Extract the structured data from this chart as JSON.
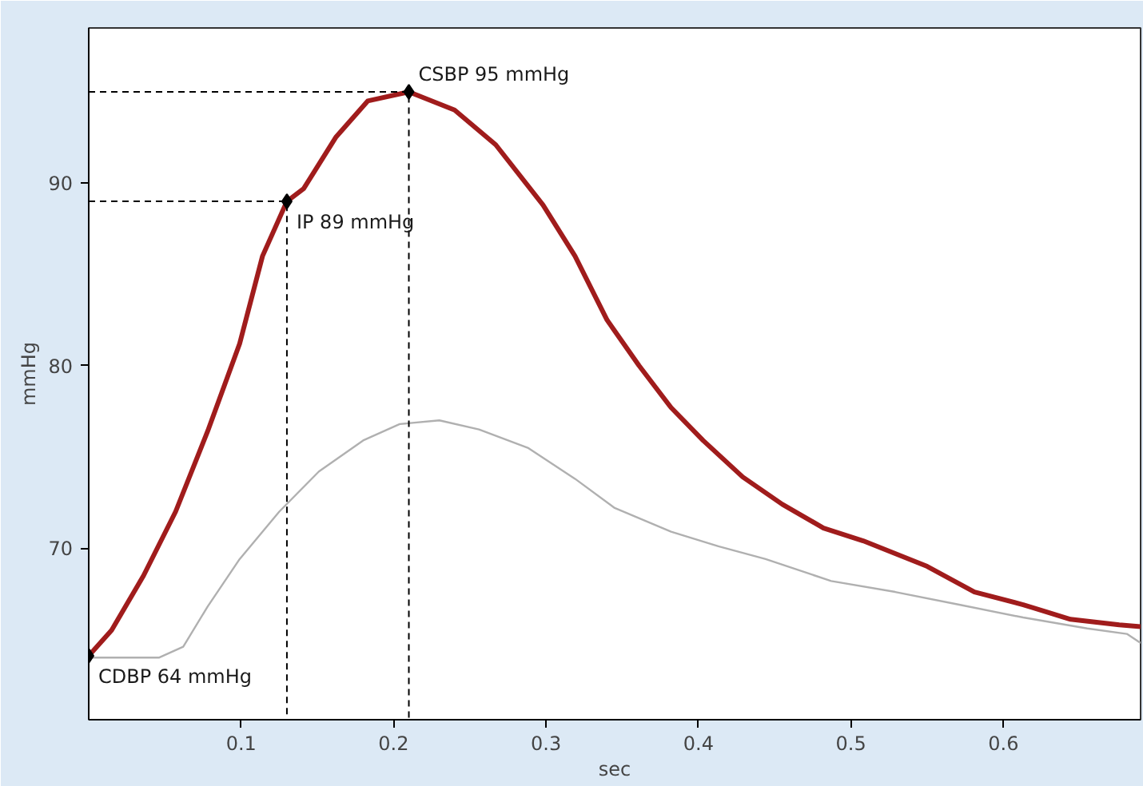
{
  "chart_data": {
    "type": "line",
    "xlabel": "sec",
    "ylabel": "mmHg",
    "xlim": [
      0,
      0.69
    ],
    "ylim": [
      60.6,
      98.5
    ],
    "xticks": [
      0.1,
      0.2,
      0.3,
      0.4,
      0.5,
      0.6
    ],
    "yticks": [
      70,
      80,
      90
    ],
    "grid": false,
    "marker": "none",
    "line_style": "solid",
    "series": [
      {
        "color": "#a01c1c",
        "x": [
          0,
          0.015,
          0.036,
          0.057,
          0.078,
          0.099,
          0.114,
          0.13,
          0.141,
          0.162,
          0.183,
          0.21,
          0.24,
          0.267,
          0.298,
          0.319,
          0.34,
          0.361,
          0.382,
          0.403,
          0.429,
          0.455,
          0.482,
          0.508,
          0.55,
          0.581,
          0.613,
          0.644,
          0.676,
          0.69
        ],
        "values": [
          64.1,
          65.5,
          68.5,
          72,
          76.4,
          81.2,
          86,
          89,
          89.7,
          92.5,
          94.5,
          95,
          94,
          92.1,
          88.8,
          86,
          82.5,
          80,
          77.7,
          75.9,
          73.9,
          72.4,
          71.1,
          70.4,
          69,
          67.6,
          66.9,
          66.1,
          65.8,
          65.7
        ]
      },
      {
        "color": "#b0b0b0",
        "x": [
          0,
          0.046,
          0.062,
          0.078,
          0.099,
          0.125,
          0.151,
          0.18,
          0.204,
          0.23,
          0.256,
          0.288,
          0.319,
          0.345,
          0.382,
          0.413,
          0.444,
          0.487,
          0.529,
          0.571,
          0.613,
          0.655,
          0.681,
          0.69
        ],
        "values": [
          64,
          64,
          64.6,
          66.8,
          69.4,
          72,
          74.2,
          75.9,
          76.8,
          77,
          76.5,
          75.5,
          73.8,
          72.2,
          70.9,
          70.1,
          69.4,
          68.2,
          67.6,
          66.9,
          66.2,
          65.6,
          65.3,
          64.8
        ]
      },
      {
        "color": "#000000",
        "type": "line",
        "line_style": "dashed",
        "x": [
          0,
          0.21,
          0.21
        ],
        "values": [
          95,
          95,
          60.6
        ]
      },
      {
        "color": "#000000",
        "type": "line",
        "line_style": "dashed",
        "x": [
          0,
          0.13,
          0.13
        ],
        "values": [
          89,
          89,
          60.6
        ]
      }
    ],
    "annotations": [
      {
        "text": "CSBP 95 mmHg",
        "x": 0.21,
        "y": 95
      },
      {
        "text": "IP 89 mmHg",
        "x": 0.13,
        "y": 89
      },
      {
        "text": "CDBP 64 mmHg",
        "x": 0,
        "y": 64.1
      }
    ]
  }
}
